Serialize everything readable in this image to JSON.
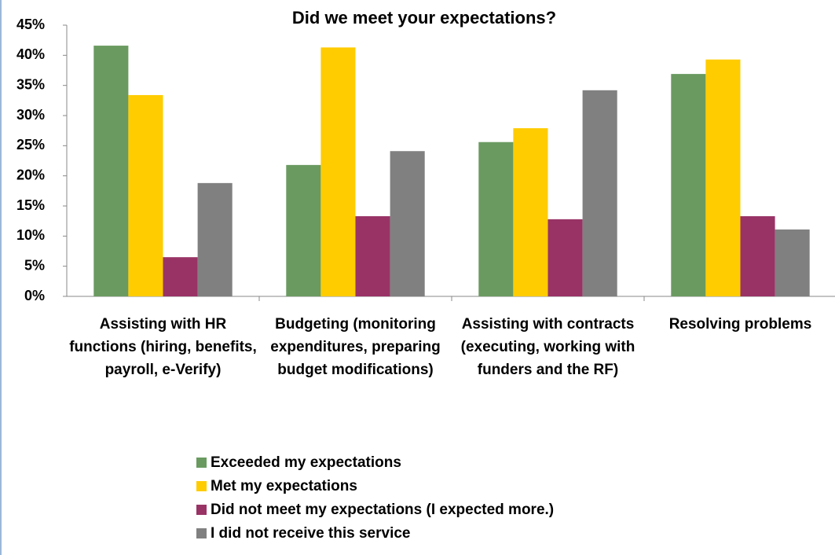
{
  "chart_data": {
    "type": "bar",
    "title": "Did we meet your expectations?",
    "categories": [
      "Assisting with HR functions (hiring, benefits, payroll, e-Verify)",
      "Budgeting (monitoring expenditures, preparing budget modifications)",
      "Assisting with contracts (executing, working with funders and the RF)",
      "Resolving problems"
    ],
    "series": [
      {
        "name": "Exceeded my expectations",
        "color": "#6a9a60",
        "values": [
          41.6,
          21.8,
          25.6,
          36.9
        ]
      },
      {
        "name": "Met my expectations",
        "color": "#ffcc00",
        "values": [
          33.4,
          41.3,
          27.9,
          39.3
        ]
      },
      {
        "name": "Did not meet my expectations (I expected more.)",
        "color": "#993366",
        "values": [
          6.5,
          13.3,
          12.8,
          13.3
        ]
      },
      {
        "name": "I did not receive this service",
        "color": "#808080",
        "values": [
          18.8,
          24.1,
          34.2,
          11.1
        ]
      }
    ],
    "ylim": [
      0,
      45
    ],
    "yticks": [
      {
        "value": 0,
        "label": "0%"
      },
      {
        "value": 5,
        "label": "5%"
      },
      {
        "value": 10,
        "label": "10%"
      },
      {
        "value": 15,
        "label": "15%"
      },
      {
        "value": 20,
        "label": "20%"
      },
      {
        "value": 25,
        "label": "25%"
      },
      {
        "value": 30,
        "label": "30%"
      },
      {
        "value": 35,
        "label": "35%"
      },
      {
        "value": 40,
        "label": "40%"
      },
      {
        "value": 45,
        "label": "45%"
      }
    ],
    "grid": false,
    "legend": "bottom"
  }
}
